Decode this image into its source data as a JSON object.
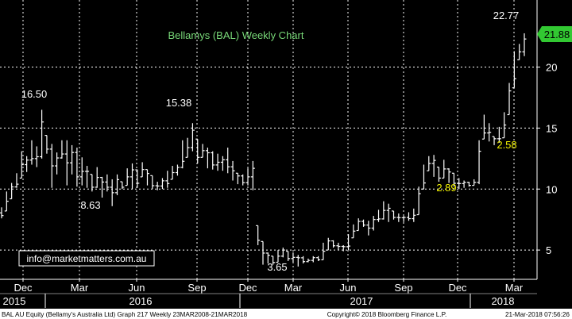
{
  "chart_data": {
    "type": "ohlc",
    "title": "Bellamys (BAL) Weekly Chart",
    "y_ticks": [
      5,
      10,
      15,
      20
    ],
    "ylim": [
      2.6,
      25.5
    ],
    "x_month_labels": [
      "Dec",
      "Mar",
      "Jun",
      "Sep",
      "Dec",
      "Mar",
      "Jun",
      "Sep",
      "Dec",
      "Mar"
    ],
    "x_year_labels": [
      "2015",
      "2016",
      "2017",
      "2018"
    ],
    "last_price": "21.88",
    "annotations": [
      "16.50",
      "8.63",
      "15.38",
      "3.65",
      "2.89",
      "2.58",
      "22.77"
    ],
    "watermark": "info@marketmatters.com.au",
    "footer_left": "BAL AU Equity (Bellamy's Australia Ltd) Graph 217  Weekly 23MAR2008-21MAR2018",
    "footer_center": "Copyright© 2018 Bloomberg Finance L.P.",
    "footer_right": "21-Mar-2018 07:56:26",
    "colors": {
      "background": "#000000",
      "bars": "#ffffff",
      "title": "#78d878",
      "annotation_white": "#ffffff",
      "annotation_yellow": "#f0f000",
      "last_price_bg": "#32c832",
      "grid": "#ffffff"
    },
    "bars": [
      {
        "high": 8.5,
        "low": 7.6
      },
      {
        "high": 9.8,
        "low": 8.2
      },
      {
        "high": 10.5,
        "low": 9.2
      },
      {
        "high": 11.3,
        "low": 10.1
      },
      {
        "high": 13.1,
        "low": 10.9
      },
      {
        "high": 12.7,
        "low": 11.4
      },
      {
        "high": 14.0,
        "low": 12.0
      },
      {
        "high": 13.5,
        "low": 11.8
      },
      {
        "high": 16.5,
        "low": 12.5
      },
      {
        "high": 14.4,
        "low": 12.9
      },
      {
        "high": 13.7,
        "low": 10.1
      },
      {
        "high": 13.0,
        "low": 11.2
      },
      {
        "high": 14.0,
        "low": 12.5
      },
      {
        "high": 14.0,
        "low": 10.3
      },
      {
        "high": 13.6,
        "low": 11.2
      },
      {
        "high": 13.4,
        "low": 10.2
      },
      {
        "high": 12.6,
        "low": 10.3
      },
      {
        "high": 11.9,
        "low": 10.1
      },
      {
        "high": 11.2,
        "low": 9.8
      },
      {
        "high": 11.8,
        "low": 10.1
      },
      {
        "high": 11.0,
        "low": 9.3
      },
      {
        "high": 11.2,
        "low": 9.8
      },
      {
        "high": 10.8,
        "low": 8.6
      },
      {
        "high": 11.2,
        "low": 9.5
      },
      {
        "high": 10.6,
        "low": 10.0
      },
      {
        "high": 11.7,
        "low": 10.3
      },
      {
        "high": 12.1,
        "low": 10.0
      },
      {
        "high": 11.6,
        "low": 10.1
      },
      {
        "high": 12.2,
        "low": 11.0
      },
      {
        "high": 11.6,
        "low": 10.3
      },
      {
        "high": 11.1,
        "low": 10.0
      },
      {
        "high": 10.6,
        "low": 9.9
      },
      {
        "high": 10.9,
        "low": 10.0
      },
      {
        "high": 11.5,
        "low": 10.1
      },
      {
        "high": 11.9,
        "low": 10.8
      },
      {
        "high": 12.0,
        "low": 11.1
      },
      {
        "high": 14.0,
        "low": 11.7
      },
      {
        "high": 14.2,
        "low": 12.6
      },
      {
        "high": 15.4,
        "low": 13.1
      },
      {
        "high": 14.1,
        "low": 12.1
      },
      {
        "high": 13.7,
        "low": 12.6
      },
      {
        "high": 13.4,
        "low": 11.7
      },
      {
        "high": 13.1,
        "low": 11.6
      },
      {
        "high": 12.9,
        "low": 11.5
      },
      {
        "high": 12.7,
        "low": 11.5
      },
      {
        "high": 13.4,
        "low": 11.3
      },
      {
        "high": 12.3,
        "low": 10.7
      },
      {
        "high": 11.3,
        "low": 10.4
      },
      {
        "high": 11.2,
        "low": 10.3
      },
      {
        "high": 11.7,
        "low": 10.3
      },
      {
        "high": 12.3,
        "low": 9.9
      },
      {
        "high": 7.0,
        "low": 5.4
      },
      {
        "high": 5.7,
        "low": 3.8
      },
      {
        "high": 4.8,
        "low": 3.9
      },
      {
        "high": 4.5,
        "low": 3.8
      },
      {
        "high": 5.0,
        "low": 4.0
      },
      {
        "high": 5.2,
        "low": 4.4
      },
      {
        "high": 4.9,
        "low": 4.1
      },
      {
        "high": 4.8,
        "low": 4.0
      },
      {
        "high": 4.6,
        "low": 3.65
      },
      {
        "high": 4.5,
        "low": 3.9
      },
      {
        "high": 4.3,
        "low": 4.0
      },
      {
        "high": 4.5,
        "low": 4.0
      },
      {
        "high": 4.5,
        "low": 4.1
      },
      {
        "high": 5.6,
        "low": 4.2
      },
      {
        "high": 6.0,
        "low": 5.0
      },
      {
        "high": 5.8,
        "low": 5.2
      },
      {
        "high": 5.6,
        "low": 5.0
      },
      {
        "high": 5.4,
        "low": 4.9
      },
      {
        "high": 6.3,
        "low": 5.0
      },
      {
        "high": 7.1,
        "low": 6.0
      },
      {
        "high": 7.6,
        "low": 6.6
      },
      {
        "high": 7.5,
        "low": 6.9
      },
      {
        "high": 7.4,
        "low": 6.2
      },
      {
        "high": 7.8,
        "low": 6.6
      },
      {
        "high": 8.3,
        "low": 7.3
      },
      {
        "high": 9.0,
        "low": 7.5
      },
      {
        "high": 8.8,
        "low": 7.3
      },
      {
        "high": 8.2,
        "low": 7.5
      },
      {
        "high": 8.0,
        "low": 7.3
      },
      {
        "high": 7.8,
        "low": 7.3
      },
      {
        "high": 8.1,
        "low": 7.4
      },
      {
        "high": 8.4,
        "low": 7.3
      },
      {
        "high": 10.2,
        "low": 7.9
      },
      {
        "high": 12.0,
        "low": 10.0
      },
      {
        "high": 12.7,
        "low": 11.5
      },
      {
        "high": 12.8,
        "low": 11.0
      },
      {
        "high": 11.8,
        "low": 10.6
      },
      {
        "high": 12.4,
        "low": 10.9
      },
      {
        "high": 11.7,
        "low": 10.5
      },
      {
        "high": 11.3,
        "low": 10.2
      },
      {
        "high": 10.9,
        "low": 10.0
      },
      {
        "high": 10.7,
        "low": 10.1
      },
      {
        "high": 10.6,
        "low": 10.2
      },
      {
        "high": 10.8,
        "low": 10.3
      },
      {
        "high": 14.0,
        "low": 10.4
      },
      {
        "high": 16.1,
        "low": 14.1
      },
      {
        "high": 15.4,
        "low": 13.9
      },
      {
        "high": 14.3,
        "low": 13.6
      },
      {
        "high": 15.1,
        "low": 13.8
      },
      {
        "high": 16.3,
        "low": 14.2
      },
      {
        "high": 18.7,
        "low": 16.1
      },
      {
        "high": 21.3,
        "low": 18.3
      },
      {
        "high": 21.9,
        "low": 20.6
      },
      {
        "high": 22.77,
        "low": 20.9
      }
    ]
  }
}
